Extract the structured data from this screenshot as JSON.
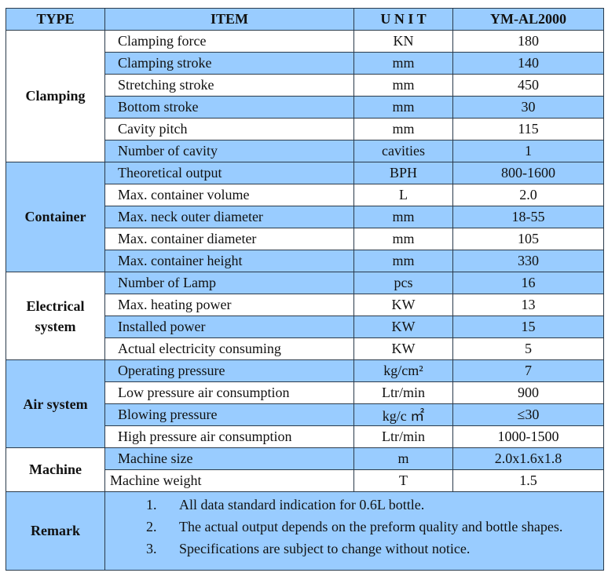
{
  "headers": [
    "TYPE",
    "ITEM",
    "U N I T",
    "YM-AL2000"
  ],
  "groups": [
    {
      "type": "Clamping",
      "rows": [
        [
          "Clamping force",
          "KN",
          "180"
        ],
        [
          "Clamping stroke",
          "mm",
          "140"
        ],
        [
          "Stretching stroke",
          "mm",
          "450"
        ],
        [
          "Bottom stroke",
          "mm",
          "30"
        ],
        [
          "Cavity pitch",
          "mm",
          "115"
        ],
        [
          "Number of cavity",
          "cavities",
          "1"
        ]
      ]
    },
    {
      "type": "Container",
      "rows": [
        [
          "Theoretical output",
          "BPH",
          "800-1600"
        ],
        [
          "Max. container volume",
          "L",
          "2.0"
        ],
        [
          "Max. neck outer diameter",
          "mm",
          "18-55"
        ],
        [
          "Max. container diameter",
          "mm",
          "105"
        ],
        [
          "Max. container height",
          "mm",
          "330"
        ]
      ]
    },
    {
      "type": "Electrical system",
      "rows": [
        [
          "Number of Lamp",
          "pcs",
          "16"
        ],
        [
          "Max. heating power",
          "KW",
          "13"
        ],
        [
          "Installed power",
          "KW",
          "15"
        ],
        [
          "Actual electricity consuming",
          "KW",
          "5"
        ]
      ]
    },
    {
      "type": "Air system",
      "rows": [
        [
          "Operating pressure",
          "kg/cm²",
          "7"
        ],
        [
          "Low pressure air consumption",
          "Ltr/min",
          "900"
        ],
        [
          "Blowing pressure",
          "kg/c ㎡",
          "≤30"
        ],
        [
          "High pressure air consumption",
          "Ltr/min",
          "1000-1500"
        ]
      ]
    },
    {
      "type": "Machine",
      "rows": [
        [
          "Machine size",
          "m",
          "2.0x1.6x1.8"
        ],
        [
          "Machine weight",
          "T",
          "1.5"
        ]
      ]
    }
  ],
  "remark": {
    "label": "Remark",
    "items": [
      "All data standard indication for 0.6L bottle.",
      "The actual output depends on the preform quality and bottle shapes.",
      "Specifications are subject to change without notice."
    ]
  }
}
